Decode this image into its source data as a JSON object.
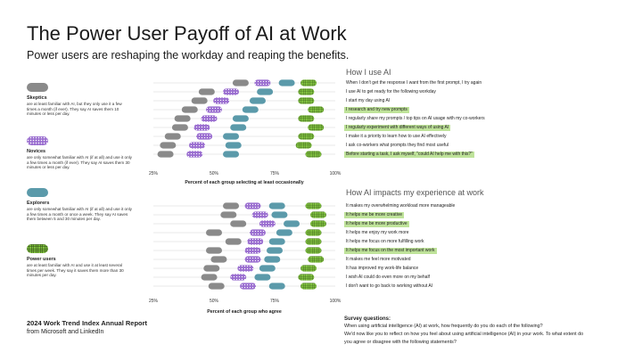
{
  "title": "The Power User Payoff of AI at Work",
  "subtitle": "Power users are reshaping the workday and reaping the benefits.",
  "legend": [
    {
      "name": "Skeptics",
      "color": "#8a8a8a",
      "pattern": "solid",
      "description": "are at least familiar with AI, but they only use it a few times a month (if ever). They say AI saves them 10 minutes or less per day."
    },
    {
      "name": "Novices",
      "color": "#9b6fd0",
      "pattern": "dots",
      "description": "are only somewhat familiar with AI (if at all) and use it only a few times a month (if ever). They say AI saves them 30 minutes or less per day."
    },
    {
      "name": "Explorers",
      "color": "#5b9aaa",
      "pattern": "solid",
      "description": "are only somewhat familiar with AI (if at all) and use it only a few times a month or once a week. They say AI saves them between 5 and 30 minutes per day."
    },
    {
      "name": "Power users",
      "color": "#7fbf3f",
      "pattern": "grid",
      "description": "are at least familiar with AI and use it at least several times per week. They say it saves them more than 30 minutes per day."
    }
  ],
  "footer": {
    "title": "2024 Work Trend Index Annual Report",
    "subtitle": "from Microsoft and LinkedIn"
  },
  "survey": {
    "title": "Survey questions:",
    "lines": [
      "When using artificial intelligence (AI) at work, how frequently do you do each of the following?",
      "We'd now like you to reflect on how you feel about using artificial intelligence (AI) in your work. To what extent do",
      "you agree or disagree with the following statements?"
    ]
  },
  "chart_data": [
    {
      "type": "scatter",
      "title": "How I use AI",
      "xlabel": "Percent of each group selecting at least occasionally",
      "xlim": [
        25,
        100
      ],
      "xticks": [
        "25%",
        "50%",
        "75%",
        "100%"
      ],
      "categories": [
        "When I don't get the response I want from the first prompt, I try again",
        "I use AI to get ready for the following workday",
        "I start my day using AI",
        "I research and try new prompts",
        "I regularly share my prompts / top tips on AI usage with my co-workers",
        "I regularly experiment with different ways of using AI",
        "I make it a priority to learn how to use AI effectively",
        "I ask co-workers what prompts they find most useful",
        "Before starting a task, I ask myself, \"could AI help me with this?\""
      ],
      "highlighted": [
        3,
        5,
        8
      ],
      "series": [
        {
          "name": "Skeptics",
          "values": [
            61,
            47,
            44,
            40,
            37,
            36,
            33,
            31,
            30
          ]
        },
        {
          "name": "Novices",
          "values": [
            70,
            57,
            53,
            50,
            48,
            45,
            46,
            43,
            42
          ]
        },
        {
          "name": "Explorers",
          "values": [
            80,
            71,
            68,
            65,
            61,
            60,
            57,
            58,
            57
          ]
        },
        {
          "name": "Power users",
          "values": [
            89,
            88,
            88,
            92,
            88,
            92,
            88,
            87,
            91
          ]
        }
      ]
    },
    {
      "type": "scatter",
      "title": "How AI impacts my experience at work",
      "xlabel": "Percent of each group who agree",
      "xlim": [
        25,
        100
      ],
      "xticks": [
        "25%",
        "50%",
        "75%",
        "100%"
      ],
      "categories": [
        "It makes my overwhelming workload more manageable",
        "It helps me be more creative",
        "It helps me be more productive",
        "It helps me enjoy my work more",
        "It helps me focus on more fulfilling work",
        "It helps me focus on the most important work",
        "It makes me feel more motivated",
        "It has improved my work-life balance",
        "I wish AI could do even more on my behalf",
        "I don't want to go back to working without AI"
      ],
      "highlighted": [
        1,
        2,
        5
      ],
      "series": [
        {
          "name": "Skeptics",
          "values": [
            57,
            56,
            60,
            50,
            58,
            50,
            52,
            49,
            48,
            51
          ]
        },
        {
          "name": "Novices",
          "values": [
            66,
            69,
            72,
            68,
            67,
            66,
            66,
            63,
            60,
            64
          ]
        },
        {
          "name": "Explorers",
          "values": [
            76,
            77,
            82,
            79,
            76,
            75,
            74,
            72,
            70,
            76
          ]
        },
        {
          "name": "Power users",
          "values": [
            91,
            93,
            93,
            91,
            91,
            91,
            92,
            89,
            88,
            89
          ]
        }
      ]
    }
  ]
}
